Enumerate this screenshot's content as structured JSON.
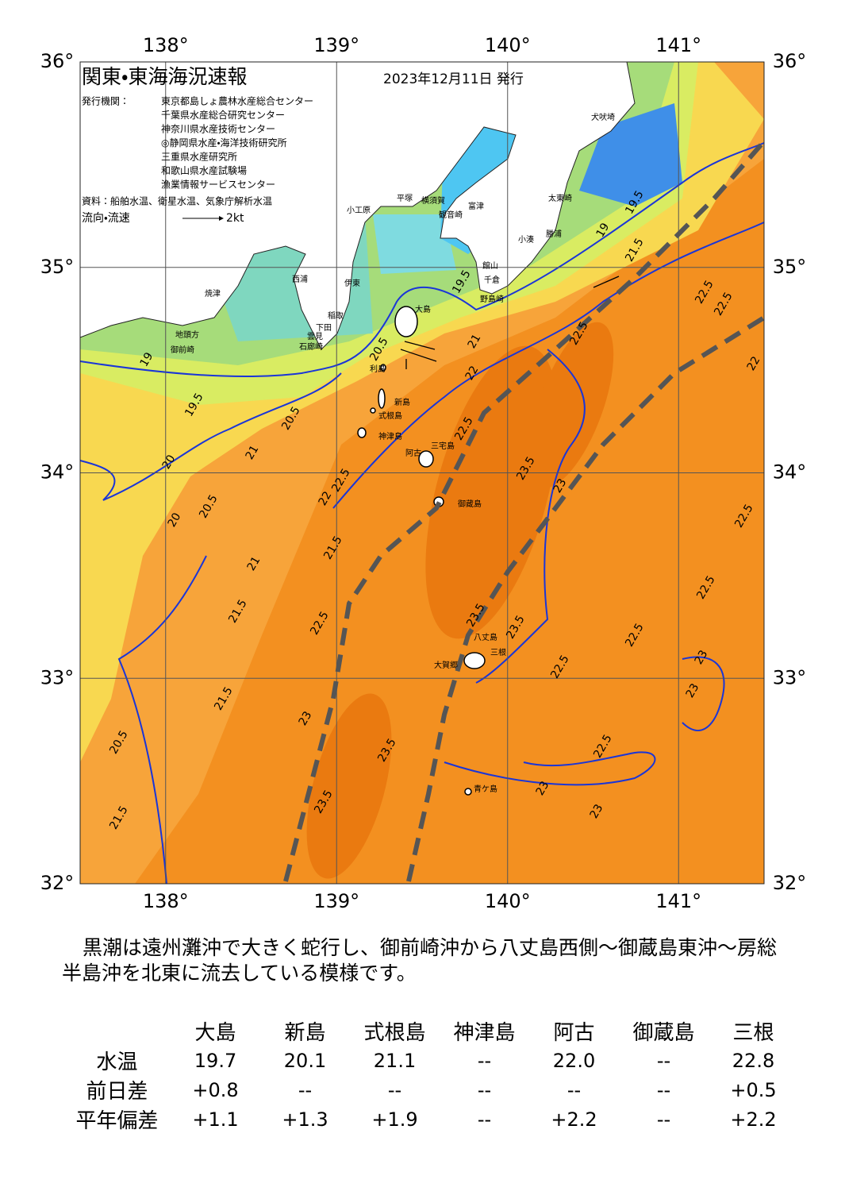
{
  "header": {
    "title": "関東・東海海況速報",
    "date": "2023年12月11日 発行"
  },
  "agencies": {
    "label": "発行機関：",
    "items": [
      "東京都島しょ農林水産総合センター",
      "千葉県水産総合研究センター",
      "神奈川県水産技術センター",
      "◎静岡県水産・海洋技術研究所",
      "三重県水産研究所",
      "和歌山県水産試験場",
      "漁業情報サービスセンター"
    ]
  },
  "sources": "資料：船舶水温、衛星水温、気象庁解析水温",
  "legend": {
    "label": "流向・流速",
    "speed": "2kt"
  },
  "map": {
    "lonlim": [
      137.5,
      141.5
    ],
    "latlim": [
      32,
      36
    ],
    "lon_ticks": [
      {
        "value": 138,
        "label": "138°"
      },
      {
        "value": 139,
        "label": "139°"
      },
      {
        "value": 140,
        "label": "140°"
      },
      {
        "value": 141,
        "label": "141°"
      }
    ],
    "lat_ticks": [
      {
        "value": 32,
        "label": "32°"
      },
      {
        "value": 33,
        "label": "33°"
      },
      {
        "value": 34,
        "label": "34°"
      },
      {
        "value": 35,
        "label": "35°"
      },
      {
        "value": 36,
        "label": "36°"
      }
    ],
    "places": [
      "大島",
      "利島",
      "新島",
      "式根島",
      "神津島",
      "三宅島",
      "阿古",
      "御蔵島",
      "八丈島",
      "三根",
      "大賀郷",
      "青ケ島",
      "小工原",
      "平塚",
      "横須賀",
      "観音崎",
      "富津",
      "館山",
      "千倉",
      "野島崎",
      "勝浦",
      "小湊",
      "太東崎",
      "犬吠埼",
      "伊東",
      "稲取",
      "下田",
      "雲見",
      "石廊崎",
      "西浦",
      "焼津",
      "御前崎",
      "地頭方"
    ],
    "contours": [
      "19",
      "19.5",
      "20.5",
      "21",
      "20",
      "20.5",
      "20",
      "21",
      "21.5",
      "22.5",
      "21.5",
      "22.5",
      "22",
      "22.5",
      "23.5",
      "23",
      "23.5",
      "23.5",
      "22.5",
      "22.5",
      "23",
      "23",
      "22.5",
      "23",
      "23",
      "23.5",
      "23.5",
      "23",
      "21.5",
      "20.5",
      "21.5",
      "22.5",
      "22.5",
      "22.5",
      "22",
      "22.5",
      "19",
      "19.5",
      "21.5",
      "21",
      "20.5",
      "19.5",
      "22.5",
      "22"
    ]
  },
  "summary": "黒潮は遠州灘沖で大きく蛇行し、御前崎沖から八丈島西側～御蔵島東沖～房総半島沖を北東に流去している模様です。",
  "table": {
    "columns": [
      "大島",
      "新島",
      "式根島",
      "神津島",
      "阿古",
      "御蔵島",
      "三根"
    ],
    "rows": [
      [
        "水温",
        "19.7",
        "20.1",
        "21.1",
        "--",
        "22.0",
        "--",
        "22.8"
      ],
      [
        "前日差",
        "+0.8",
        "--",
        "--",
        "--",
        "--",
        "--",
        "+0.5"
      ],
      [
        "平年偏差",
        "+1.1",
        "+1.3",
        "+1.9",
        "--",
        "+2.2",
        "--",
        "+2.2"
      ]
    ]
  }
}
